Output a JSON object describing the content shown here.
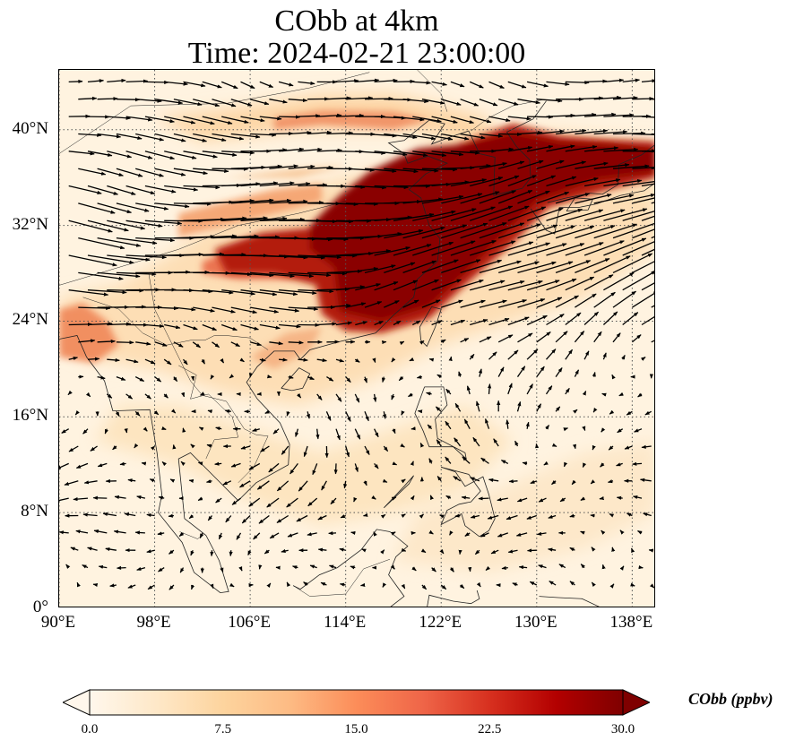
{
  "title": {
    "line1": "CObb at 4km",
    "line2": "Time: 2024-02-21 23:00:00"
  },
  "map": {
    "projection": "PlateCarree",
    "lon_range": [
      90,
      140
    ],
    "lat_range": [
      0,
      45
    ],
    "gridlines": "dotted",
    "coastlines": true,
    "lat_ticks": [
      {
        "value": 0,
        "label": "0°"
      },
      {
        "value": 8,
        "label": "8°N"
      },
      {
        "value": 16,
        "label": "16°N"
      },
      {
        "value": 24,
        "label": "24°N"
      },
      {
        "value": 32,
        "label": "32°N"
      },
      {
        "value": 40,
        "label": "40°N"
      }
    ],
    "lon_ticks": [
      {
        "value": 90,
        "label": "90°E"
      },
      {
        "value": 98,
        "label": "98°E"
      },
      {
        "value": 106,
        "label": "106°E"
      },
      {
        "value": 114,
        "label": "114°E"
      },
      {
        "value": 122,
        "label": "122°E"
      },
      {
        "value": 130,
        "label": "130°E"
      },
      {
        "value": 138,
        "label": "138°E"
      }
    ],
    "wind_vectors": "black quiver arrows"
  },
  "colorbar": {
    "label": "CObb (ppbv)",
    "colormap": "OrRd",
    "min": 0.0,
    "max": 30.0,
    "extend": "both",
    "ticks": [
      "0.0",
      "7.5",
      "15.0",
      "22.5",
      "30.0"
    ],
    "tick_values": [
      0,
      7.5,
      15,
      22.5,
      30
    ],
    "stops": [
      "#fff7ec",
      "#fee8c8",
      "#fdd49e",
      "#fdbb84",
      "#fc8d59",
      "#ef6548",
      "#d7301f",
      "#b30000",
      "#7f0000"
    ]
  }
}
